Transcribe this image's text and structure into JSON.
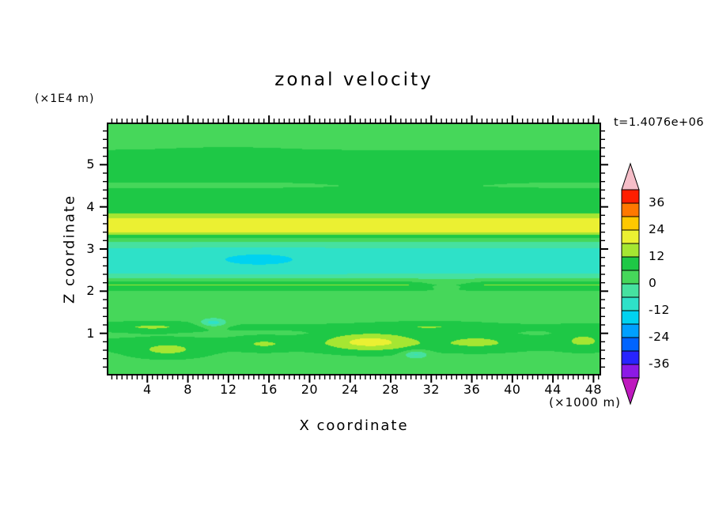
{
  "figure": {
    "title": "zonal velocity",
    "time_label": "t=1.4076e+06",
    "y_axis_unit": "(×1E4 m)",
    "x_axis_unit": "(×1000 m)",
    "x_axis_title": "X coordinate",
    "y_axis_title": "Z coordinate"
  },
  "chart_data": {
    "type": "heatmap",
    "subtype": "filled-contour",
    "title": "zonal velocity",
    "xlabel": "X coordinate",
    "ylabel": "Z coordinate",
    "x_units": "(×1000 m)",
    "y_units": "(×1E4 m)",
    "time_annotation": "t=1.4076e+06",
    "xlim": [
      0,
      48.75
    ],
    "ylim": [
      0,
      6
    ],
    "grid": false,
    "x_major_ticks": [
      4,
      8,
      12,
      16,
      20,
      24,
      28,
      32,
      36,
      40,
      44,
      48
    ],
    "x_tick_labels": [
      "4",
      "8",
      "12",
      "16",
      "20",
      "24",
      "28",
      "32",
      "36",
      "40",
      "44",
      "48"
    ],
    "x_minor_step": 0.5,
    "y_major_ticks": [
      1,
      2,
      3,
      4,
      5
    ],
    "y_tick_labels": [
      "1",
      "2",
      "3",
      "4",
      "5"
    ],
    "y_minor_step": 0.2,
    "contour_levels": [
      -42,
      -36,
      -30,
      -24,
      -18,
      -12,
      -6,
      0,
      6,
      12,
      18,
      24,
      30,
      36,
      42
    ],
    "colorbar": {
      "position": "right",
      "tick_values": [
        36,
        24,
        12,
        0,
        -12,
        -24,
        -36
      ],
      "tick_labels": [
        "36",
        "24",
        "12",
        "0",
        "-12",
        "-24",
        "-36"
      ],
      "colors_low_to_high": [
        "#8C19E6",
        "#2824FF",
        "#0064FF",
        "#00A0FF",
        "#00D2F0",
        "#2EE1C8",
        "#46E1A0",
        "#46D75A",
        "#1EC846",
        "#A5E632",
        "#EBF032",
        "#FFC800",
        "#FF7800",
        "#FF1E00"
      ],
      "under_color": "#BE19BE",
      "over_color": "#F5BEC8"
    },
    "field_model": {
      "description": "Estimated zonal velocity u(x,z): piecewise-linear vertical base profile plus gaussian anomalies u = base(z) + sum(amp*exp(-((x-cx)/rx)^2-((z-cz)/rz)^2)); mostly zonally-banded: yellow jet near z=3.5, cyan (negative) layer z=2.4-3.0, thin yellow-green line at z=2.15, darker green layers z=4.0-4.4 and 4.65-5.3, patchy yellow/yellow-green maxima near z=0.6-1.2",
      "z_profile": [
        [
          0,
          3
        ],
        [
          0.5,
          5
        ],
        [
          0.75,
          7
        ],
        [
          1.0,
          5
        ],
        [
          1.15,
          7
        ],
        [
          1.35,
          4
        ],
        [
          1.7,
          3
        ],
        [
          2.0,
          6
        ],
        [
          2.15,
          13
        ],
        [
          2.3,
          0
        ],
        [
          2.45,
          -8
        ],
        [
          2.95,
          -8
        ],
        [
          3.1,
          -3
        ],
        [
          3.25,
          4
        ],
        [
          3.4,
          19
        ],
        [
          3.55,
          21
        ],
        [
          3.68,
          21
        ],
        [
          3.8,
          13
        ],
        [
          3.95,
          9
        ],
        [
          4.1,
          8
        ],
        [
          4.35,
          8
        ],
        [
          4.5,
          5
        ],
        [
          4.65,
          7
        ],
        [
          5.3,
          7
        ],
        [
          5.45,
          4
        ],
        [
          6,
          3
        ]
      ],
      "anomalies": [
        {
          "x": 26,
          "z": 0.8,
          "rx": 4.5,
          "rz": 0.22,
          "amp": 14
        },
        {
          "x": 6,
          "z": 0.6,
          "rx": 3.5,
          "rz": 0.18,
          "amp": 8
        },
        {
          "x": 36.5,
          "z": 0.8,
          "rx": 4,
          "rz": 0.2,
          "amp": 7
        },
        {
          "x": 47,
          "z": 0.85,
          "rx": 2.5,
          "rz": 0.22,
          "amp": 7
        },
        {
          "x": 15.5,
          "z": 0.75,
          "rx": 2.5,
          "rz": 0.15,
          "amp": 6
        },
        {
          "x": 4.5,
          "z": 1.15,
          "rx": 4,
          "rz": 0.12,
          "amp": 6
        },
        {
          "x": 32,
          "z": 1.15,
          "rx": 5,
          "rz": 0.12,
          "amp": 5
        },
        {
          "x": 10.5,
          "z": 1.25,
          "rx": 1.3,
          "rz": 0.1,
          "amp": -14
        },
        {
          "x": 30.5,
          "z": 0.5,
          "rx": 1.2,
          "rz": 0.1,
          "amp": -12
        },
        {
          "x": 15,
          "z": 2.75,
          "rx": 7,
          "rz": 0.25,
          "amp": -5
        },
        {
          "x": 33.5,
          "z": 2.15,
          "rx": 2.5,
          "rz": 0.1,
          "amp": -8
        },
        {
          "x": 18,
          "z": 3.55,
          "rx": 12,
          "rz": 0.12,
          "amp": 1.5
        },
        {
          "x": 12,
          "z": 5.35,
          "rx": 6,
          "rz": 0.1,
          "amp": 2
        },
        {
          "x": 30,
          "z": 4.52,
          "rx": 7,
          "rz": 0.1,
          "amp": 2.5
        }
      ]
    }
  }
}
